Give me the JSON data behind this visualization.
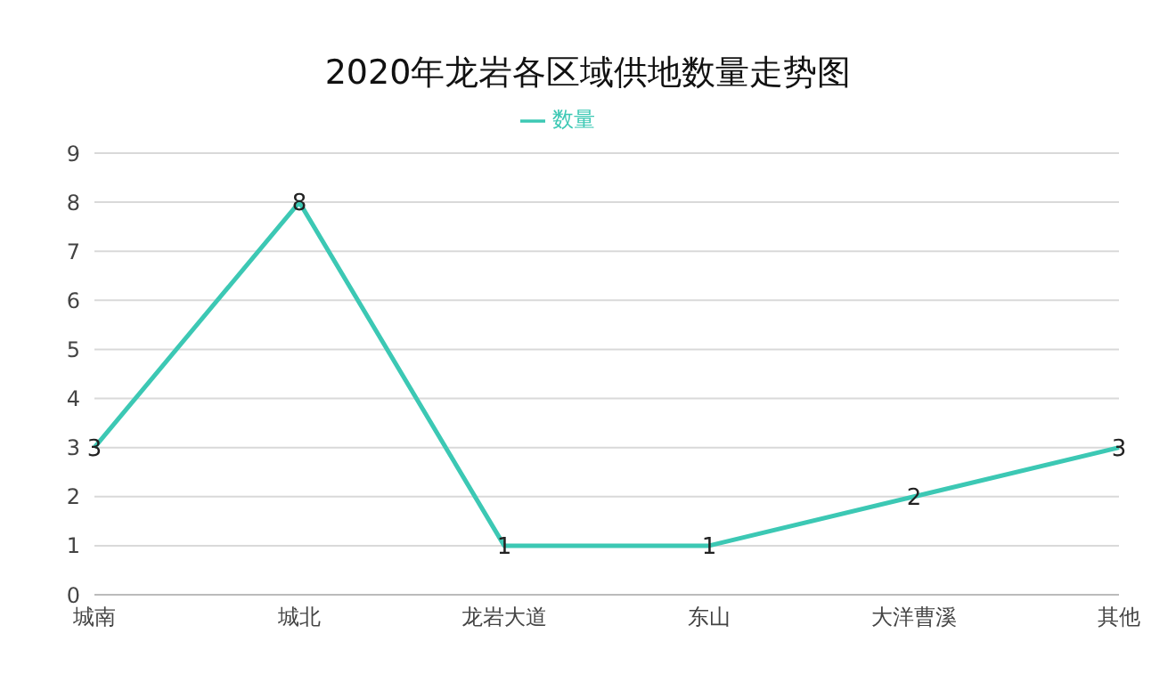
{
  "chart_data": {
    "type": "line",
    "title": "2020年龙岩各区域供地数量走势图",
    "categories": [
      "城南",
      "城北",
      "龙岩大道",
      "东山",
      "大洋曹溪",
      "其他"
    ],
    "series": [
      {
        "name": "数量",
        "color": "#3cc8b4",
        "values": [
          3,
          8,
          1,
          1,
          2,
          3
        ]
      }
    ],
    "ylim": [
      0,
      9
    ],
    "yticks": [
      0,
      1,
      2,
      3,
      4,
      5,
      6,
      7,
      8,
      9
    ],
    "grid": "y",
    "legend": "top",
    "data_labels": true
  }
}
